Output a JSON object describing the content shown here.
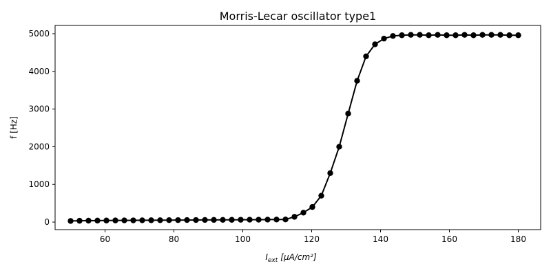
{
  "chart_data": {
    "type": "line",
    "title": "Morris-Lecar oscillator type1",
    "xlabel_main": "I",
    "xlabel_sub": "ext",
    "xlabel_units": "[μA/cm²]",
    "ylabel": "f [Hz]",
    "xlim": [
      45.5,
      186.5
    ],
    "ylim": [
      -200,
      5220
    ],
    "xticks": [
      60,
      80,
      100,
      120,
      140,
      160,
      180
    ],
    "yticks": [
      0,
      1000,
      2000,
      3000,
      4000,
      5000
    ],
    "series": [
      {
        "color": "#000000",
        "marker": "circle",
        "x": [
          50.0,
          52.6,
          55.2,
          57.8,
          60.4,
          63.0,
          65.6,
          68.2,
          70.8,
          73.4,
          76.0,
          78.6,
          81.2,
          83.8,
          86.4,
          89.0,
          91.6,
          94.2,
          96.8,
          99.4,
          102.0,
          104.6,
          107.2,
          109.8,
          112.4,
          115.0,
          117.6,
          120.2,
          122.8,
          125.4,
          128.0,
          130.6,
          133.2,
          135.8,
          138.4,
          141.0,
          143.6,
          146.2,
          148.8,
          151.4,
          154.0,
          156.6,
          159.2,
          161.8,
          164.4,
          167.0,
          169.6,
          172.2,
          174.8,
          177.4,
          180.0
        ],
        "y": [
          30,
          35,
          38,
          40,
          42,
          44,
          45,
          46,
          48,
          49,
          50,
          52,
          53,
          54,
          55,
          57,
          58,
          59,
          60,
          62,
          63,
          64,
          66,
          68,
          70,
          140,
          250,
          400,
          700,
          1300,
          2000,
          2880,
          3750,
          4400,
          4720,
          4870,
          4940,
          4960,
          4970,
          4970,
          4960,
          4970,
          4960,
          4960,
          4970,
          4960,
          4970,
          4970,
          4970,
          4960,
          4960
        ]
      }
    ]
  }
}
